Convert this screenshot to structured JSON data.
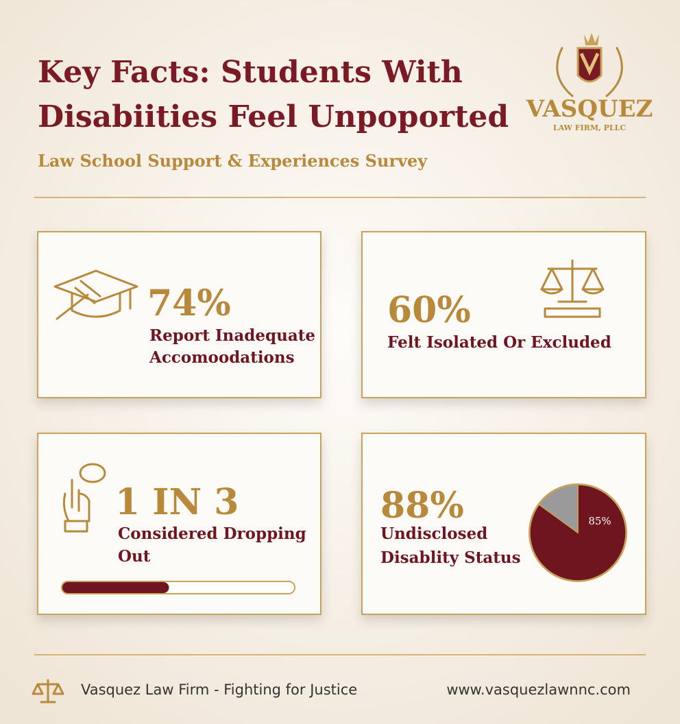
{
  "header": {
    "title_lines": [
      "Key Facts: Students With",
      "Disabiities Feel Unpoported"
    ],
    "subtitle": "Law School Support & Experiences Survey"
  },
  "logo": {
    "name": "VASQUEZ",
    "tagline": "LAW FIRM, PLLC"
  },
  "cards": [
    {
      "stat": "74%",
      "label_lines": [
        "Report Inadequate",
        "Accomoodations"
      ]
    },
    {
      "stat": "60%",
      "label_lines": [
        "Felt Isolated Or Excluded"
      ]
    },
    {
      "stat": "1 IN 3",
      "label_lines": [
        "Considered Dropping",
        "Out"
      ]
    },
    {
      "stat": "88%",
      "label_lines": [
        "Undisclosed",
        "Disablity Status"
      ]
    }
  ],
  "progress": {
    "value": 46,
    "max": 100,
    "color": "#6e1520"
  },
  "pie": {
    "values": [
      85,
      15
    ],
    "colors": [
      "#6e1520",
      "#9a9a9a"
    ],
    "value_label": "85%"
  },
  "footer": {
    "left": "Vasquez Law Firm - Fighting for Justice",
    "right": "www.vasquezlawnnc.com"
  }
}
